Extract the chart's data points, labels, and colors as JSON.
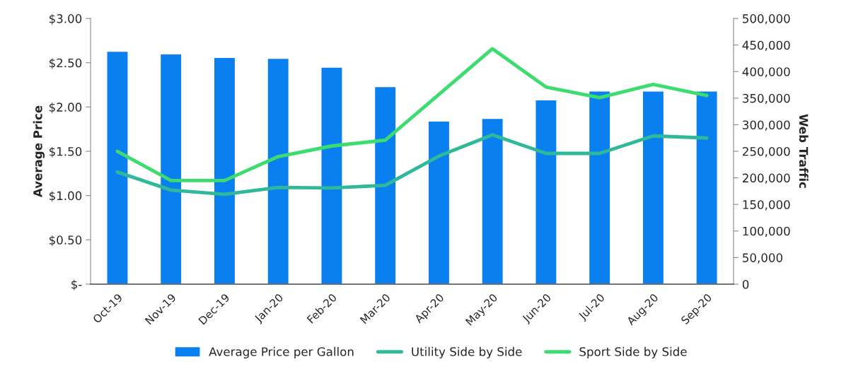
{
  "chart_data": {
    "type": "bar",
    "categories": [
      "Oct-19",
      "Nov-19",
      "Dec-19",
      "Jan-20",
      "Feb-20",
      "Mar-20",
      "Apr-20",
      "May-20",
      "Jun-20",
      "Jul-20",
      "Aug-20",
      "Sep-20"
    ],
    "series": [
      {
        "name": "Average Price per Gallon",
        "color": "#0a80f0",
        "values": [
          2.63,
          2.6,
          2.56,
          2.55,
          2.45,
          2.23,
          1.84,
          1.87,
          2.08,
          2.18,
          2.18,
          2.18
        ]
      },
      {
        "name": "Utility Side by Side",
        "type": "line",
        "axis": "y2",
        "color": "#30b89a",
        "values": [
          211000,
          177000,
          169000,
          182000,
          181000,
          186000,
          241000,
          281000,
          246000,
          246000,
          279000,
          275000
        ]
      },
      {
        "name": "Sport Side by Side",
        "type": "line",
        "axis": "y2",
        "color": "#3ddc70",
        "values": [
          250000,
          195000,
          195000,
          240000,
          260000,
          271000,
          357000,
          443000,
          371000,
          351000,
          376000,
          355000
        ]
      }
    ],
    "ylabel": "Average Price",
    "y2label": "Web Traffic",
    "ylim": [
      0,
      3
    ],
    "yticks": [
      {
        "value": 0,
        "label": "$-"
      },
      {
        "value": 0.5,
        "label": "$0.50"
      },
      {
        "value": 1,
        "label": "$1.00"
      },
      {
        "value": 1.5,
        "label": "$1.50"
      },
      {
        "value": 2,
        "label": "$2.00"
      },
      {
        "value": 2.5,
        "label": "$2.50"
      },
      {
        "value": 3,
        "label": "$3.00"
      }
    ],
    "y2lim": [
      0,
      500000
    ],
    "y2ticks": [
      0,
      {
        "value": 50000,
        "label": "50,000"
      },
      {
        "value": 100000,
        "label": "100,000"
      },
      {
        "value": 150000,
        "label": "150,000"
      },
      {
        "value": 200000,
        "label": "200,000"
      },
      {
        "value": 250000,
        "label": "250,000"
      },
      {
        "value": 300000,
        "label": "300,000"
      },
      {
        "value": 350000,
        "label": "350,000"
      },
      {
        "value": 400000,
        "label": "400,000"
      },
      {
        "value": 450000,
        "label": "450,000"
      },
      {
        "value": 500000,
        "label": "500,000"
      }
    ],
    "grid": false,
    "legend": "bottom"
  }
}
